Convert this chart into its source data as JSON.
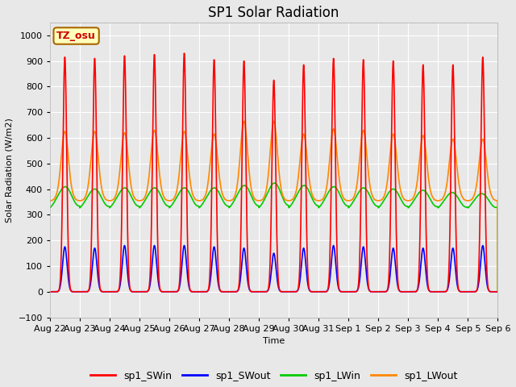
{
  "title": "SP1 Solar Radiation",
  "ylabel": "Solar Radiation (W/m2)",
  "xlabel": "Time",
  "ylim": [
    -100,
    1050
  ],
  "background_color": "#e8e8e8",
  "grid_color": "white",
  "tz_label": "TZ_osu",
  "tz_box_color": "#ffffbb",
  "tz_border_color": "#aa6600",
  "tz_text_color": "#cc0000",
  "x_tick_labels": [
    "Aug 22",
    "Aug 23",
    "Aug 24",
    "Aug 25",
    "Aug 26",
    "Aug 27",
    "Aug 28",
    "Aug 29",
    "Aug 30",
    "Aug 31",
    "Sep 1",
    "Sep 2",
    "Sep 3",
    "Sep 4",
    "Sep 5",
    "Sep 6"
  ],
  "legend_labels": [
    "sp1_SWin",
    "sp1_SWout",
    "sp1_LWin",
    "sp1_LWout"
  ],
  "legend_colors": [
    "#ff0000",
    "#0000ff",
    "#00cc00",
    "#ff8800"
  ],
  "num_days": 15,
  "title_fontsize": 12,
  "swin_peaks": [
    915,
    910,
    920,
    925,
    930,
    905,
    900,
    825,
    885,
    910,
    905,
    900,
    885,
    885,
    915
  ],
  "swout_peaks": [
    175,
    170,
    180,
    180,
    180,
    175,
    170,
    150,
    170,
    180,
    175,
    170,
    170,
    170,
    180
  ],
  "lwout_base": 370,
  "lwout_peaks": [
    610,
    610,
    605,
    615,
    610,
    600,
    650,
    650,
    600,
    620,
    615,
    600,
    595,
    580,
    580
  ],
  "lwin_base": 340,
  "lwin_bumps": [
    60,
    50,
    55,
    55,
    55,
    55,
    65,
    75,
    65,
    60,
    55,
    50,
    45,
    35,
    30
  ]
}
